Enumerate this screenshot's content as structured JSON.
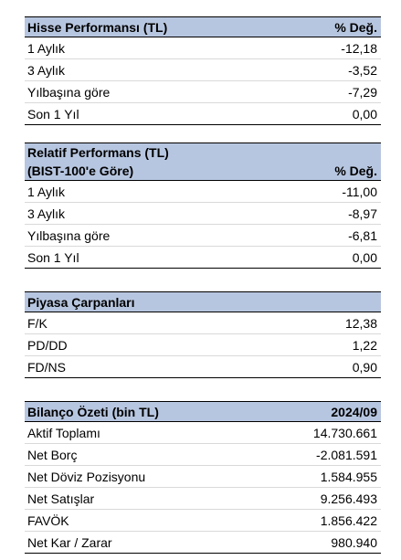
{
  "hisse": {
    "title": "Hisse Performansı (TL)",
    "col": "% Değ.",
    "rows": [
      {
        "label": "1 Aylık",
        "value": "-12,18"
      },
      {
        "label": "3 Aylık",
        "value": "-3,52"
      },
      {
        "label": "Yılbaşına göre",
        "value": "-7,29"
      },
      {
        "label": "Son 1 Yıl",
        "value": "0,00"
      }
    ]
  },
  "relatif": {
    "title1": "Relatif Performans (TL)",
    "title2": "(BIST-100'e Göre)",
    "col": "% Değ.",
    "rows": [
      {
        "label": "1 Aylık",
        "value": "-11,00"
      },
      {
        "label": "3 Aylık",
        "value": "-8,97"
      },
      {
        "label": "Yılbaşına göre",
        "value": "-6,81"
      },
      {
        "label": "Son 1 Yıl",
        "value": "0,00"
      }
    ]
  },
  "carpan": {
    "title": "Piyasa Çarpanları",
    "rows": [
      {
        "label": "F/K",
        "value": "12,38"
      },
      {
        "label": "PD/DD",
        "value": "1,22"
      },
      {
        "label": "FD/NS",
        "value": "0,90"
      }
    ]
  },
  "bilanco": {
    "title": "Bilanço Özeti (bin TL)",
    "col": "2024/09",
    "rows": [
      {
        "label": "Aktif Toplamı",
        "value": "14.730.661"
      },
      {
        "label": "Net Borç",
        "value": "-2.081.591"
      },
      {
        "label": "Net Döviz Pozisyonu",
        "value": "1.584.955"
      },
      {
        "label": "Net Satışlar",
        "value": "9.256.493"
      },
      {
        "label": "FAVÖK",
        "value": "1.856.422"
      },
      {
        "label": "Net Kar / Zarar",
        "value": "980.940"
      }
    ]
  }
}
